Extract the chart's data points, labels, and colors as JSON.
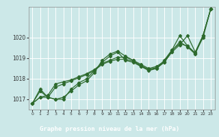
{
  "title": "Graphe pression niveau de la mer (hPa)",
  "bg_color": "#cce8e8",
  "grid_color": "#ffffff",
  "line_color": "#2d6a2d",
  "label_bg": "#2d6a2d",
  "label_text_color": "#ffffff",
  "xlim": [
    -0.5,
    23.5
  ],
  "ylim": [
    1016.5,
    1021.5
  ],
  "yticks": [
    1017,
    1018,
    1019,
    1020
  ],
  "xticks": [
    0,
    1,
    2,
    3,
    4,
    5,
    6,
    7,
    8,
    9,
    10,
    11,
    12,
    13,
    14,
    15,
    16,
    17,
    18,
    19,
    20,
    21,
    22,
    23
  ],
  "series": [
    [
      1016.8,
      1017.5,
      1017.1,
      1017.0,
      1017.0,
      1017.5,
      1017.8,
      1018.0,
      1018.4,
      1018.8,
      1019.1,
      1019.3,
      1018.9,
      1018.8,
      1018.6,
      1018.4,
      1018.5,
      1018.8,
      1019.35,
      1019.8,
      1019.55,
      1019.2,
      1020.1,
      1021.4
    ],
    [
      1016.8,
      1017.1,
      1017.1,
      1017.6,
      1017.75,
      1017.9,
      1018.05,
      1018.2,
      1018.4,
      1018.7,
      1018.85,
      1018.95,
      1018.95,
      1018.85,
      1018.65,
      1018.45,
      1018.55,
      1018.8,
      1019.3,
      1019.65,
      1020.1,
      1019.3,
      1020.1,
      1021.4
    ],
    [
      1016.8,
      1017.1,
      1017.2,
      1017.75,
      1017.85,
      1017.95,
      1018.1,
      1018.25,
      1018.45,
      1018.75,
      1018.9,
      1019.05,
      1019.05,
      1018.9,
      1018.7,
      1018.5,
      1018.6,
      1018.85,
      1019.4,
      1019.7,
      1019.6,
      1019.25,
      1020.1,
      1021.4
    ],
    [
      1016.8,
      1017.4,
      1017.1,
      1017.0,
      1017.1,
      1017.4,
      1017.7,
      1017.9,
      1018.3,
      1018.9,
      1019.2,
      1019.35,
      1019.1,
      1018.9,
      1018.6,
      1018.45,
      1018.5,
      1018.9,
      1019.4,
      1020.1,
      1019.6,
      1019.25,
      1020.0,
      1021.4
    ]
  ]
}
